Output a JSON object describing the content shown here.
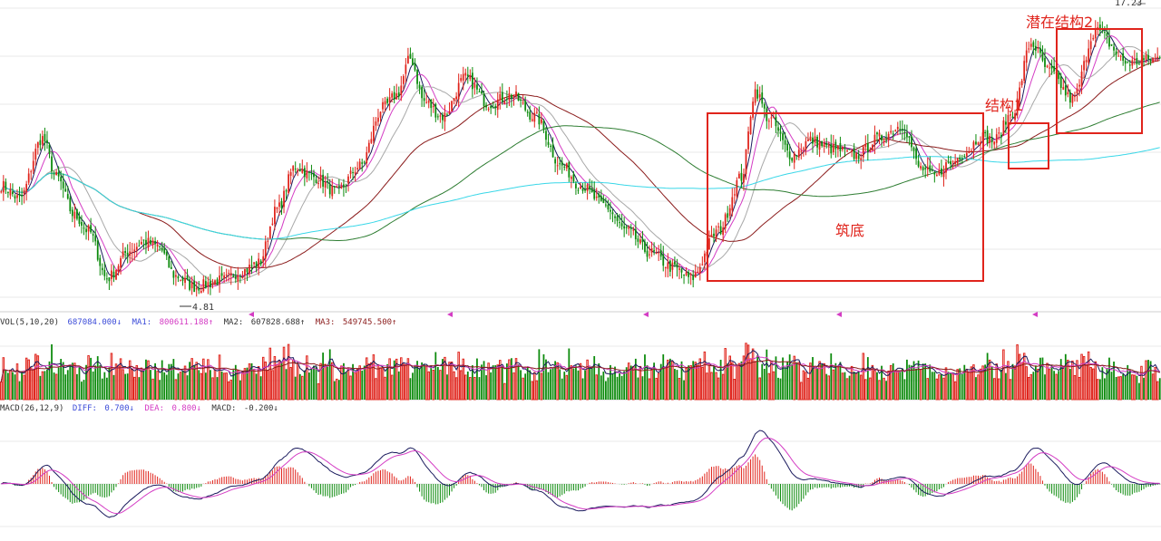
{
  "chart_data": [
    {
      "type": "candlestick",
      "panel": "price",
      "price_labels": {
        "high": "17.23",
        "low": "4.81"
      },
      "annotations": [
        {
          "label": "筑底",
          "color": "#e0241c"
        },
        {
          "label": "结构1",
          "color": "#e0241c"
        },
        {
          "label": "潜在结构2",
          "color": "#e0241c"
        }
      ],
      "ylim": [
        4.0,
        18.0
      ],
      "price_anchors": [
        [
          0,
          9.6
        ],
        [
          8,
          9.0
        ],
        [
          18,
          11.8
        ],
        [
          24,
          10.0
        ],
        [
          32,
          8.2
        ],
        [
          38,
          7.5
        ],
        [
          46,
          5.3
        ],
        [
          56,
          6.6
        ],
        [
          62,
          7.0
        ],
        [
          68,
          6.8
        ],
        [
          76,
          5.4
        ],
        [
          84,
          4.9
        ],
        [
          96,
          5.2
        ],
        [
          104,
          5.6
        ],
        [
          112,
          6.0
        ],
        [
          120,
          8.5
        ],
        [
          128,
          10.5
        ],
        [
          136,
          10.0
        ],
        [
          146,
          9.3
        ],
        [
          156,
          10.5
        ],
        [
          166,
          13.2
        ],
        [
          172,
          13.8
        ],
        [
          178,
          15.5
        ],
        [
          184,
          13.5
        ],
        [
          192,
          12.8
        ],
        [
          202,
          14.6
        ],
        [
          212,
          13.4
        ],
        [
          222,
          13.8
        ],
        [
          232,
          12.8
        ],
        [
          244,
          10.5
        ],
        [
          252,
          9.6
        ],
        [
          262,
          8.7
        ],
        [
          272,
          7.5
        ],
        [
          282,
          6.5
        ],
        [
          292,
          5.8
        ],
        [
          300,
          5.3
        ],
        [
          312,
          7.5
        ],
        [
          322,
          10.0
        ],
        [
          328,
          14.0
        ],
        [
          334,
          12.7
        ],
        [
          344,
          11.0
        ],
        [
          352,
          11.7
        ],
        [
          362,
          11.3
        ],
        [
          372,
          11.0
        ],
        [
          382,
          11.8
        ],
        [
          392,
          12.4
        ],
        [
          400,
          10.4
        ],
        [
          406,
          10.0
        ],
        [
          412,
          10.6
        ],
        [
          420,
          11.2
        ],
        [
          426,
          11.9
        ],
        [
          432,
          11.7
        ],
        [
          440,
          13.0
        ],
        [
          448,
          16.2
        ],
        [
          456,
          14.9
        ],
        [
          466,
          13.6
        ],
        [
          476,
          16.8
        ],
        [
          490,
          15.3
        ],
        [
          504,
          15.5
        ]
      ],
      "moving_averages": [
        {
          "name": "MA5",
          "color": "#1b1b5e"
        },
        {
          "name": "MA10",
          "color": "#d43cc4"
        },
        {
          "name": "MA20",
          "color": "#a8a8a8"
        },
        {
          "name": "MA60",
          "color": "#8b1c1c"
        },
        {
          "name": "MA120",
          "color": "#2e7d32"
        },
        {
          "name": "MA250",
          "color": "#39d7e8"
        }
      ]
    },
    {
      "type": "bar",
      "panel": "volume",
      "legend": {
        "title": "VOL(5,10,20)",
        "vol": "687084.000↓",
        "ma1_label": "MA1:",
        "ma1_value": "800611.188↑",
        "ma2_label": "MA2:",
        "ma2_value": "607828.688↑",
        "ma3_label": "MA3:",
        "ma3_value": "549745.500↑"
      },
      "ylim": [
        0,
        1500000
      ],
      "colors": {
        "up": "#e0241c",
        "down": "#0b8a0b"
      },
      "moving_averages": [
        {
          "name": "MA1",
          "color": "#1b1b5e"
        },
        {
          "name": "MA2",
          "color": "#d43cc4"
        },
        {
          "name": "MA3",
          "color": "#8b1c1c"
        }
      ]
    },
    {
      "type": "line",
      "panel": "macd",
      "legend": {
        "title": "MACD(26,12,9)",
        "diff_label": "DIFF:",
        "diff_value": "0.700↓",
        "dea_label": "DEA:",
        "dea_value": "0.800↓",
        "macd_label": "MACD:",
        "macd_value": "-0.200↓"
      },
      "colors": {
        "diff": "#1b1b5e",
        "dea": "#d43cc4",
        "pos_bar": "#e0241c",
        "neg_bar": "#0b8a0b"
      }
    }
  ],
  "colors": {
    "grid": "#e8e8e8",
    "axis": "#cfcfcf",
    "legend_text": "#333333",
    "up_candle": "#e0241c",
    "down_candle": "#0b8a0b",
    "marker": "#d43cc4",
    "label_blue": "#3b4bd8"
  }
}
